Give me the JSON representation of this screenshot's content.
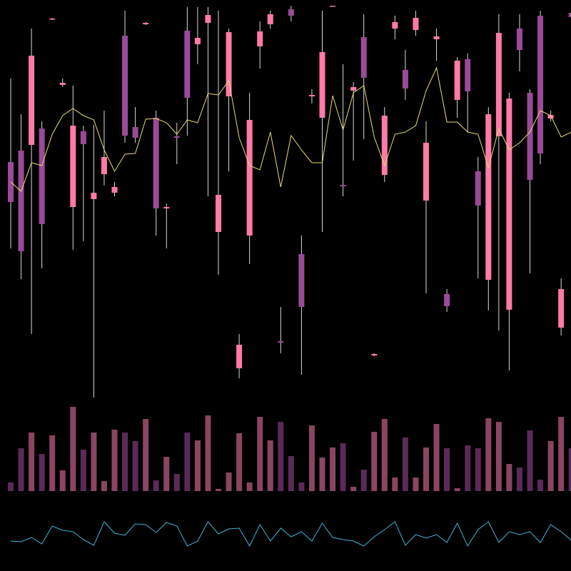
{
  "chart_data": [
    {
      "type": "candlestick",
      "up_color": "#ff7aa8",
      "down_color": "#9a4a98",
      "wick_color": "#d8d8d8",
      "ylim": [
        0,
        560
      ],
      "open": [
        333,
        349,
        357,
        380,
        533,
        441,
        270,
        376,
        281,
        316,
        290,
        510,
        382,
        526,
        395,
        268,
        369,
        517,
        498,
        528,
        235,
        425,
        44,
        230,
        495,
        526,
        82,
        547,
        204,
        425,
        395,
        551,
        301,
        433,
        508,
        62,
        315,
        520,
        462,
        518,
        279,
        505,
        148,
        420,
        477,
        320,
        168,
        369,
        126,
        520,
        430,
        538,
        394,
        101,
        542
      ],
      "high": [
        450,
        400,
        520,
        390,
        535,
        450,
        440,
        384,
        385,
        405,
        305,
        545,
        410,
        529,
        405,
        275,
        388,
        550,
        550,
        550,
        545,
        520,
        92,
        430,
        530,
        545,
        130,
        552,
        230,
        435,
        545,
        552,
        470,
        445,
        540,
        65,
        410,
        538,
        490,
        545,
        390,
        520,
        155,
        480,
        485,
        340,
        410,
        540,
        430,
        540,
        435,
        545,
        405,
        170,
        545
      ],
      "low": [
        212,
        169,
        92,
        184,
        532,
        438,
        210,
        222,
        3,
        300,
        285,
        360,
        360,
        525,
        230,
        212,
        330,
        370,
        470,
        285,
        175,
        320,
        30,
        190,
        464,
        520,
        65,
        530,
        35,
        415,
        235,
        551,
        285,
        335,
        365,
        61,
        305,
        505,
        420,
        510,
        149,
        475,
        123,
        395,
        375,
        170,
        125,
        97,
        41,
        460,
        177,
        330,
        390,
        90,
        532
      ],
      "close": [
        277,
        208,
        482,
        246,
        534,
        444,
        384,
        358,
        290,
        340,
        298,
        370,
        367,
        528,
        268,
        270,
        367,
        423,
        507,
        539,
        287,
        515,
        77,
        392,
        516,
        540,
        80,
        538,
        130,
        427,
        487,
        552,
        299,
        438,
        451,
        64,
        398,
        529,
        436,
        535,
        360,
        509,
        131,
        475,
        432,
        272,
        400,
        514,
        422,
        490,
        308,
        345,
        399,
        155,
        536
      ],
      "series": [
        {
          "color": "#e8de6a",
          "values": [
            305,
            292,
            332,
            328,
            372,
            398,
            408,
            398,
            392,
            350,
            320,
            344,
            345,
            393,
            394,
            388,
            372,
            392,
            388,
            429,
            427,
            447,
            367,
            328,
            322,
            375,
            298,
            370,
            350,
            332,
            332,
            426,
            378,
            430,
            440,
            368,
            328,
            372,
            375,
            384,
            433,
            465,
            389,
            389,
            375,
            372,
            325,
            380,
            350,
            360,
            375,
            405,
            398,
            368,
            375
          ]
        }
      ]
    },
    {
      "type": "bar",
      "up_color": "#8a4562",
      "down_color": "#5a2a58",
      "ylim": [
        0,
        130
      ],
      "values": [
        12,
        60,
        82,
        52,
        78,
        29,
        118,
        58,
        82,
        14,
        86,
        82,
        70,
        101,
        15,
        48,
        24,
        82,
        71,
        106,
        3,
        26,
        81,
        12,
        104,
        71,
        97,
        49,
        12,
        92,
        47,
        61,
        67,
        6,
        30,
        83,
        101,
        19,
        75,
        19,
        61,
        94,
        60,
        4,
        64,
        60,
        102,
        97,
        38,
        33,
        85,
        16,
        70,
        104,
        60
      ]
    },
    {
      "type": "line",
      "color": "#3fb5d5",
      "ylim": [
        0,
        100
      ],
      "values": [
        42,
        41,
        47,
        38,
        63,
        57,
        55,
        44,
        36,
        69,
        53,
        50,
        66,
        65,
        54,
        68,
        63,
        35,
        42,
        69,
        52,
        59,
        60,
        35,
        65,
        42,
        60,
        48,
        55,
        42,
        67,
        47,
        44,
        42,
        35,
        48,
        58,
        69,
        36,
        51,
        46,
        51,
        40,
        67,
        35,
        58,
        69,
        40,
        55,
        51,
        55,
        40,
        65,
        55,
        43
      ]
    }
  ]
}
